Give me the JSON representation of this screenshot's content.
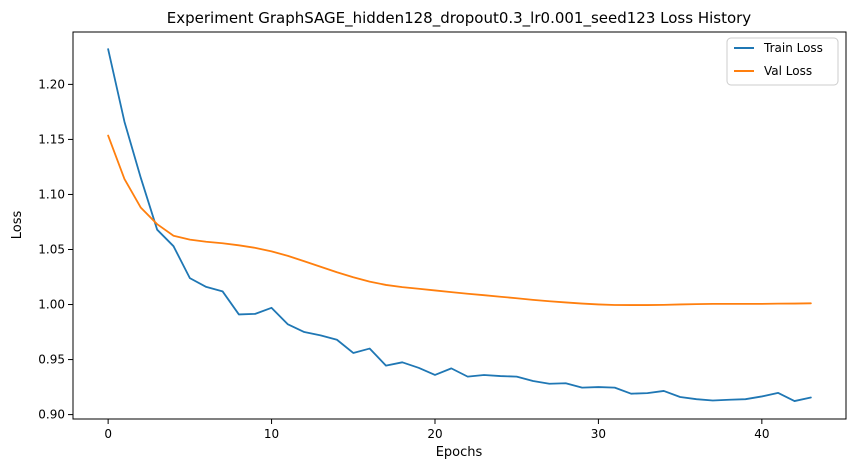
{
  "chart_data": {
    "type": "line",
    "title": "Experiment GraphSAGE_hidden128_dropout0.3_lr0.001_seed123 Loss History",
    "xlabel": "Epochs",
    "ylabel": "Loss",
    "xlim": [
      -2.15,
      45.15
    ],
    "ylim": [
      0.896,
      1.2476
    ],
    "xticks": [
      0,
      10,
      20,
      30,
      40
    ],
    "yticks": [
      0.9,
      0.95,
      1.0,
      1.05,
      1.1,
      1.15,
      1.2
    ],
    "xtick_labels": [
      "0",
      "10",
      "20",
      "30",
      "40"
    ],
    "ytick_labels": [
      "0.90",
      "0.95",
      "1.00",
      "1.05",
      "1.10",
      "1.15",
      "1.20"
    ],
    "grid": false,
    "legend_position": "upper right",
    "x": [
      0,
      1,
      2,
      3,
      4,
      5,
      6,
      7,
      8,
      9,
      10,
      11,
      12,
      13,
      14,
      15,
      16,
      17,
      18,
      19,
      20,
      21,
      22,
      23,
      24,
      25,
      26,
      27,
      28,
      29,
      30,
      31,
      32,
      33,
      34,
      35,
      36,
      37,
      38,
      39,
      40,
      41,
      42,
      43
    ],
    "series": [
      {
        "name": "Train Loss",
        "color": "#1f77b4",
        "values": [
          1.232,
          1.166,
          1.115,
          1.068,
          1.053,
          1.024,
          1.016,
          1.012,
          0.991,
          0.9915,
          0.997,
          0.982,
          0.975,
          0.972,
          0.968,
          0.956,
          0.96,
          0.9445,
          0.9475,
          0.9425,
          0.936,
          0.942,
          0.9345,
          0.936,
          0.935,
          0.9345,
          0.9305,
          0.928,
          0.9285,
          0.9245,
          0.925,
          0.9245,
          0.919,
          0.9195,
          0.9215,
          0.916,
          0.914,
          0.9128,
          0.9135,
          0.914,
          0.9165,
          0.9197,
          0.9123,
          0.9155
        ]
      },
      {
        "name": "Val Loss",
        "color": "#ff7f0e",
        "values": [
          1.1535,
          1.114,
          1.088,
          1.073,
          1.0625,
          1.059,
          1.057,
          1.0557,
          1.0538,
          1.0515,
          1.0483,
          1.0442,
          1.0393,
          1.0343,
          1.0293,
          1.0248,
          1.0208,
          1.0178,
          1.0158,
          1.0143,
          1.0128,
          1.0113,
          1.0098,
          1.0085,
          1.0071,
          1.0057,
          1.0042,
          1.003,
          1.0019,
          1.0009,
          1.0001,
          0.9996,
          0.9995,
          0.9995,
          0.9997,
          1.0001,
          1.0004,
          1.0006,
          1.0006,
          1.0006,
          1.0006,
          1.0008,
          1.0009,
          1.0011
        ]
      }
    ]
  }
}
